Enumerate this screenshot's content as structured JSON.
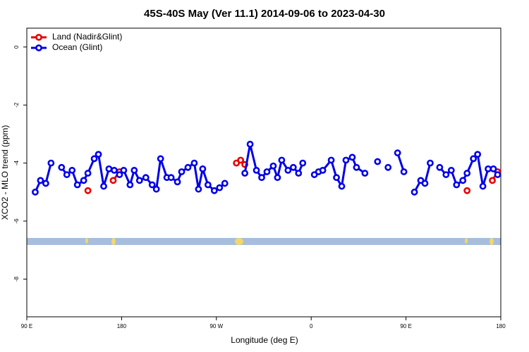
{
  "chart_data": {
    "type": "line",
    "title": "45S-40S May (Ver 11.1)   2014-09-06 to 2023-04-30",
    "xlabel": "Longitude (deg E)",
    "ylabel": "XCO2 - MLO trend (ppm)",
    "xlim": [
      90,
      540
    ],
    "ylim": [
      -9.3,
      0.65
    ],
    "xticks": [
      {
        "value": 90,
        "label": "90 E"
      },
      {
        "value": 180,
        "label": "180"
      },
      {
        "value": 270,
        "label": "90 W"
      },
      {
        "value": 360,
        "label": "0"
      },
      {
        "value": 450,
        "label": "90 E"
      },
      {
        "value": 540,
        "label": "180"
      }
    ],
    "yticks": [
      0,
      -2,
      -4,
      -6,
      -8
    ],
    "legend": "top-left",
    "series": [
      {
        "name": "Land (Nadir&Glint)",
        "color": "#e80000",
        "x": [
          148,
          null,
          172,
          178,
          null,
          289,
          293,
          297,
          null,
          508,
          null,
          532,
          537
        ],
        "values": [
          -4.95,
          null,
          -4.6,
          -4.3,
          null,
          -4.0,
          -3.9,
          -4.05,
          null,
          -4.95,
          null,
          -4.6,
          -4.3
        ]
      },
      {
        "name": "Ocean (Glint)",
        "color": "#0000e8",
        "x": [
          98,
          103,
          108,
          113,
          null,
          123,
          128,
          133,
          138,
          144,
          148,
          154,
          158,
          163,
          168,
          173,
          178,
          182,
          188,
          192,
          197,
          203,
          209,
          213,
          217,
          223,
          227,
          233,
          237,
          243,
          249,
          253,
          257,
          262,
          268,
          273,
          278,
          null,
          297,
          302,
          308,
          313,
          318,
          324,
          328,
          332,
          338,
          343,
          348,
          352,
          null,
          363,
          367,
          371,
          379,
          384,
          389,
          393,
          399,
          403,
          411,
          null,
          423,
          null,
          433,
          null,
          442,
          448,
          null,
          458,
          464,
          468,
          473,
          null,
          482,
          488,
          493,
          498,
          504,
          508,
          514,
          518,
          523,
          528,
          533,
          537
        ],
        "values": [
          -5.0,
          -4.6,
          -4.7,
          -4.0,
          null,
          -4.15,
          -4.4,
          -4.25,
          -4.75,
          -4.6,
          -4.35,
          -3.85,
          -3.7,
          -4.8,
          -4.2,
          -4.25,
          -4.4,
          -4.25,
          -4.75,
          -4.25,
          -4.6,
          -4.5,
          -4.75,
          -4.9,
          -3.85,
          -4.5,
          -4.5,
          -4.65,
          -4.3,
          -4.15,
          -4.0,
          -4.9,
          -4.2,
          -4.75,
          -4.95,
          -4.85,
          -4.7,
          null,
          -4.35,
          -3.35,
          -4.25,
          -4.5,
          -4.3,
          -4.1,
          -4.5,
          -3.9,
          -4.25,
          -4.15,
          -4.35,
          -4.0,
          null,
          -4.4,
          -4.3,
          -4.25,
          -3.9,
          -4.5,
          -4.8,
          -3.9,
          -3.8,
          -4.15,
          -4.35,
          null,
          -3.95,
          null,
          -4.15,
          null,
          -3.65,
          -4.3,
          null,
          -5.0,
          -4.6,
          -4.7,
          -4.0,
          null,
          -4.15,
          -4.4,
          -4.25,
          -4.75,
          -4.6,
          -4.35,
          -3.85,
          -3.7,
          -4.8,
          -4.2,
          -4.2,
          -4.4
        ]
      }
    ]
  }
}
